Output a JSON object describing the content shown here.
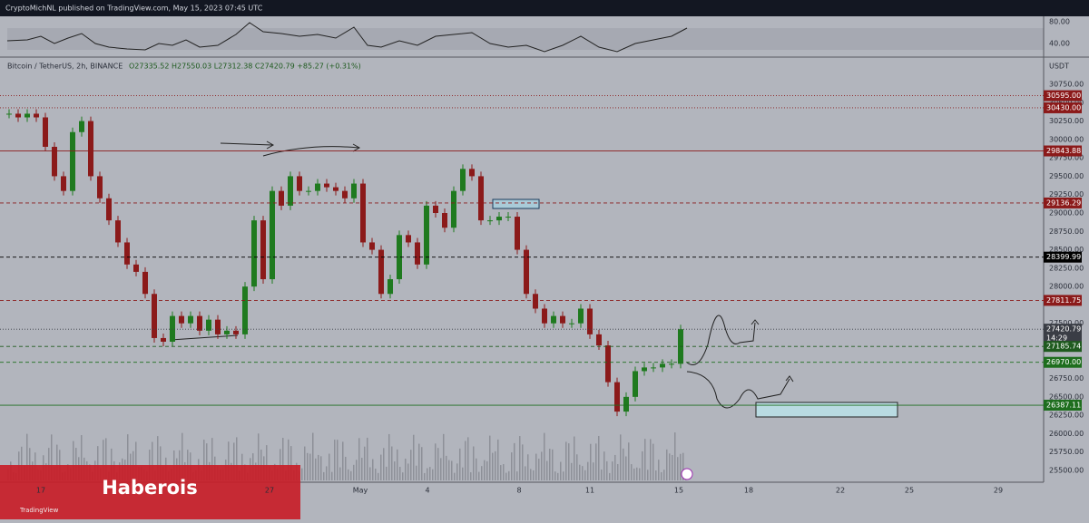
{
  "header": {
    "title": "CryptoMichNL published on TradingView.com, May 15, 2023 07:45 UTC"
  },
  "legend": {
    "symbol": "Bitcoin / TetherUS, 2h, BINANCE",
    "ohlc": "O27335.52 H27550.03 L27312.38 C27420.79 +85.27 (+0.31%)"
  },
  "rsi": {
    "ticks": [
      {
        "value": 80,
        "label": "80.00"
      },
      {
        "value": 40,
        "label": "40.00"
      }
    ]
  },
  "price_axis": {
    "unit": "USDT",
    "range": [
      25500,
      30750
    ],
    "ticks": [
      {
        "value": 30750,
        "label": "30750.00"
      },
      {
        "value": 30500,
        "label": "30500.00"
      },
      {
        "value": 30250,
        "label": "30250.00"
      },
      {
        "value": 30000,
        "label": "30000.00"
      },
      {
        "value": 29750,
        "label": "29750.00"
      },
      {
        "value": 29500,
        "label": "29500.00"
      },
      {
        "value": 29250,
        "label": "29250.00"
      },
      {
        "value": 29000,
        "label": "29000.00"
      },
      {
        "value": 28750,
        "label": "28750.00"
      },
      {
        "value": 28500,
        "label": "28500.00"
      },
      {
        "value": 28250,
        "label": "28250.00"
      },
      {
        "value": 28000,
        "label": "28000.00"
      },
      {
        "value": 27500,
        "label": "27500.00"
      },
      {
        "value": 26750,
        "label": "26750.00"
      },
      {
        "value": 26500,
        "label": "26500.00"
      },
      {
        "value": 26250,
        "label": "26250.00"
      },
      {
        "value": 26000,
        "label": "26000.00"
      },
      {
        "value": 25750,
        "label": "25750.00"
      },
      {
        "value": 25500,
        "label": "25500.00"
      }
    ]
  },
  "levels": [
    {
      "value": 30595,
      "label": "30595.00",
      "color": "#8b1a1a",
      "style": "dotted"
    },
    {
      "value": 30430,
      "label": "30430.00",
      "color": "#8b1a1a",
      "style": "dotted"
    },
    {
      "value": 29843.88,
      "label": "29843.88",
      "color": "#8b1a1a",
      "style": "solid"
    },
    {
      "value": 29136.29,
      "label": "29136.29",
      "color": "#8b1a1a",
      "style": "dashed"
    },
    {
      "value": 28399.99,
      "label": "28399.99",
      "color": "#000000",
      "style": "dashed"
    },
    {
      "value": 27811.75,
      "label": "27811.75",
      "color": "#8b1a1a",
      "style": "dashed"
    },
    {
      "value": 27420.79,
      "label": "27420.79",
      "color": "#3a3d45",
      "style": "dotted",
      "sub": "14:29"
    },
    {
      "value": 27185.74,
      "label": "27185.74",
      "color": "#1e5a1e",
      "style": "dashed"
    },
    {
      "value": 26970,
      "label": "26970.00",
      "color": "#1e6e1e",
      "style": "dashed"
    },
    {
      "value": 26387.11,
      "label": "26387.11",
      "color": "#1e6e1e",
      "style": "solid"
    }
  ],
  "dates": [
    "17",
    "27",
    "May",
    "4",
    "8",
    "11",
    "15",
    "18",
    "22",
    "25",
    "29"
  ],
  "candles": {
    "closes": [
      30350,
      30300,
      30350,
      30300,
      29900,
      29500,
      29300,
      30100,
      30250,
      29500,
      29200,
      28900,
      28600,
      28300,
      28200,
      27900,
      27300,
      27250,
      27600,
      27500,
      27600,
      27400,
      27550,
      27350,
      27400,
      27350,
      28000,
      28900,
      28100,
      29300,
      29100,
      29500,
      29300,
      29300,
      29400,
      29350,
      29300,
      29200,
      29400,
      28600,
      28500,
      27900,
      28100,
      28700,
      28600,
      28300,
      29100,
      29000,
      28800,
      29300,
      29600,
      29500,
      28900,
      28900,
      28950,
      28950,
      28500,
      27900,
      27700,
      27500,
      27600,
      27500,
      27500,
      27700,
      27350,
      27200,
      26700,
      26300,
      26500,
      26850,
      26900,
      26900,
      26950,
      26950,
      27420
    ]
  },
  "watermark": "Haberois",
  "brand": "TradingView"
}
